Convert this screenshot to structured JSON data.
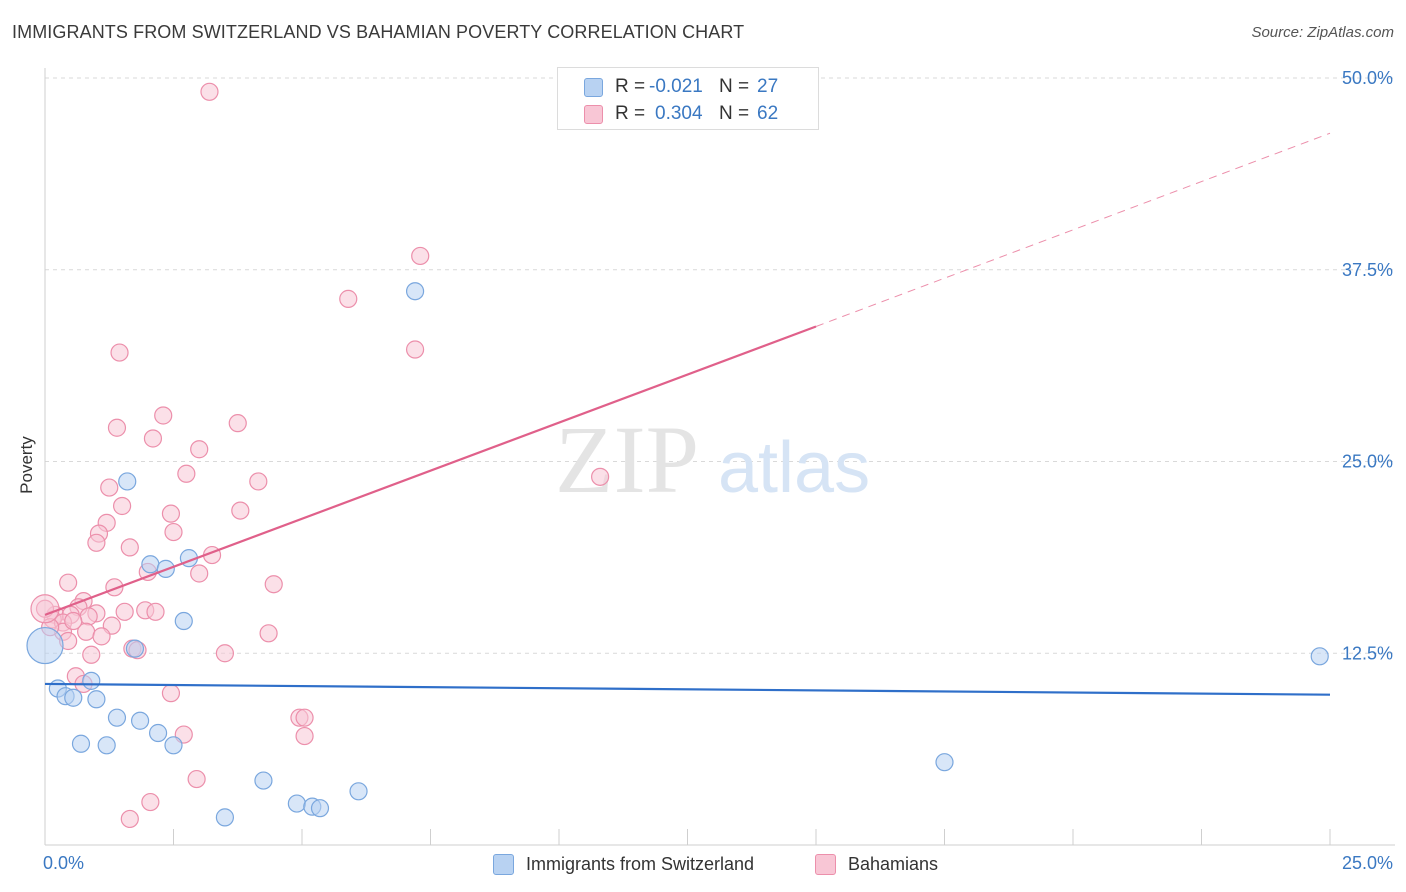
{
  "title": "IMMIGRANTS FROM SWITZERLAND VS BAHAMIAN POVERTY CORRELATION CHART",
  "source": "Source: ZipAtlas.com",
  "watermark": {
    "zip": "ZIP",
    "atlas": "atlas"
  },
  "legend": {
    "series1": {
      "r_label": "R =",
      "r_value": "-0.021",
      "n_label": "N =",
      "n_value": "27"
    },
    "series2": {
      "r_label": "R =",
      "r_value": "0.304",
      "n_label": "N =",
      "n_value": "62"
    }
  },
  "colors": {
    "blue_fill": "#b8d2f2",
    "blue_stroke": "#7aa7de",
    "blue_line": "#2f6fc9",
    "pink_fill": "#f8c6d5",
    "pink_stroke": "#ec8fab",
    "pink_line": "#e0608a",
    "axis_label": "#3a78c2",
    "grid": "#d9d9d9"
  },
  "chart_data": {
    "type": "scatter",
    "title": "IMMIGRANTS FROM SWITZERLAND VS BAHAMIAN POVERTY CORRELATION CHART",
    "xlabel": "",
    "ylabel": "Poverty",
    "xlim": [
      0,
      25
    ],
    "ylim": [
      0,
      50
    ],
    "x_tick_labels": [
      "0.0%",
      "25.0%"
    ],
    "y_ticks": [
      12.5,
      25.0,
      37.5,
      50.0
    ],
    "y_tick_labels": [
      "12.5%",
      "25.0%",
      "37.5%",
      "50.0%"
    ],
    "series": [
      {
        "name": "Immigrants from Switzerland",
        "color": "#7aa7de",
        "trend": {
          "x": [
            0,
            25
          ],
          "y": [
            10.5,
            9.8
          ]
        },
        "points": [
          [
            0.0,
            13.0
          ],
          [
            0.25,
            10.2
          ],
          [
            0.4,
            9.7
          ],
          [
            0.55,
            9.6
          ],
          [
            0.7,
            6.6
          ],
          [
            0.9,
            10.7
          ],
          [
            1.0,
            9.5
          ],
          [
            1.2,
            6.5
          ],
          [
            1.4,
            8.3
          ],
          [
            1.6,
            23.7
          ],
          [
            1.75,
            12.8
          ],
          [
            1.85,
            8.1
          ],
          [
            2.05,
            18.3
          ],
          [
            2.2,
            7.3
          ],
          [
            2.35,
            18.0
          ],
          [
            2.5,
            6.5
          ],
          [
            2.7,
            14.6
          ],
          [
            2.8,
            18.7
          ],
          [
            3.5,
            1.8
          ],
          [
            4.25,
            4.2
          ],
          [
            4.9,
            2.7
          ],
          [
            5.2,
            2.5
          ],
          [
            5.35,
            2.4
          ],
          [
            6.1,
            3.5
          ],
          [
            7.2,
            36.1
          ],
          [
            17.5,
            5.4
          ],
          [
            24.8,
            12.3
          ]
        ]
      },
      {
        "name": "Bahamians",
        "color": "#ec8fab",
        "trend": {
          "x": [
            0,
            15
          ],
          "y": [
            15.0,
            33.8
          ]
        },
        "trend_dashed": {
          "x": [
            15,
            25
          ],
          "y": [
            33.8,
            46.4
          ]
        },
        "points": [
          [
            3.2,
            49.1
          ],
          [
            7.3,
            38.4
          ],
          [
            5.9,
            35.6
          ],
          [
            7.2,
            32.3
          ],
          [
            1.45,
            32.1
          ],
          [
            2.3,
            28.0
          ],
          [
            3.75,
            27.5
          ],
          [
            1.4,
            27.2
          ],
          [
            2.1,
            26.5
          ],
          [
            3.0,
            25.8
          ],
          [
            2.75,
            24.2
          ],
          [
            10.8,
            24.0
          ],
          [
            4.15,
            23.7
          ],
          [
            1.25,
            23.3
          ],
          [
            1.5,
            22.1
          ],
          [
            3.8,
            21.8
          ],
          [
            2.45,
            21.6
          ],
          [
            1.2,
            21.0
          ],
          [
            2.5,
            20.4
          ],
          [
            1.05,
            20.3
          ],
          [
            1.0,
            19.7
          ],
          [
            1.65,
            19.4
          ],
          [
            3.25,
            18.9
          ],
          [
            2.0,
            17.8
          ],
          [
            3.0,
            17.7
          ],
          [
            0.45,
            17.1
          ],
          [
            4.45,
            17.0
          ],
          [
            1.35,
            16.8
          ],
          [
            0.75,
            15.9
          ],
          [
            0.65,
            15.5
          ],
          [
            1.0,
            15.1
          ],
          [
            1.55,
            15.2
          ],
          [
            1.95,
            15.3
          ],
          [
            2.15,
            15.2
          ],
          [
            0.2,
            15.0
          ],
          [
            0.5,
            15.0
          ],
          [
            0.85,
            14.9
          ],
          [
            0.15,
            14.7
          ],
          [
            0.35,
            14.5
          ],
          [
            0.0,
            15.4
          ],
          [
            1.3,
            14.3
          ],
          [
            0.35,
            13.9
          ],
          [
            0.8,
            13.9
          ],
          [
            1.1,
            13.6
          ],
          [
            4.35,
            13.8
          ],
          [
            0.45,
            13.3
          ],
          [
            1.7,
            12.8
          ],
          [
            1.8,
            12.7
          ],
          [
            0.9,
            12.4
          ],
          [
            3.5,
            12.5
          ],
          [
            0.6,
            11.0
          ],
          [
            0.75,
            10.5
          ],
          [
            2.45,
            9.9
          ],
          [
            4.95,
            8.3
          ],
          [
            5.05,
            8.3
          ],
          [
            2.7,
            7.2
          ],
          [
            5.05,
            7.1
          ],
          [
            2.95,
            4.3
          ],
          [
            2.05,
            2.8
          ],
          [
            1.65,
            1.7
          ],
          [
            0.1,
            14.2
          ],
          [
            0.55,
            14.6
          ]
        ]
      }
    ]
  },
  "bottom_legend": [
    "Immigrants from Switzerland",
    "Bahamians"
  ]
}
